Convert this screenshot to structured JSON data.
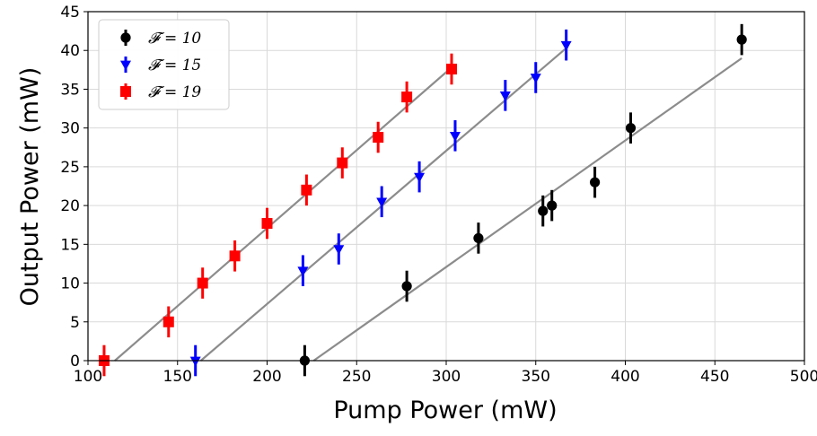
{
  "chart_data": {
    "type": "scatter",
    "title": "",
    "xlabel": "Pump Power (mW)",
    "ylabel": "Output Power (mW)",
    "xlim": [
      100,
      500
    ],
    "ylim": [
      0,
      45
    ],
    "xticks": [
      "100",
      "150",
      "200",
      "250",
      "300",
      "350",
      "400",
      "450",
      "500"
    ],
    "yticks": [
      "0",
      "5",
      "10",
      "15",
      "20",
      "25",
      "30",
      "35",
      "40",
      "45"
    ],
    "grid": true,
    "legend_position": "top-left",
    "series": [
      {
        "name": "𝓕 = 10",
        "color": "#000000",
        "marker": "circle",
        "points": [
          [
            221,
            0
          ],
          [
            278,
            9.6
          ],
          [
            318,
            15.8
          ],
          [
            354,
            19.3
          ],
          [
            359,
            20
          ],
          [
            383,
            23
          ],
          [
            403,
            30
          ],
          [
            465,
            41.4
          ]
        ],
        "error": 2.0,
        "fit": [
          [
            226,
            0
          ],
          [
            465,
            39
          ]
        ]
      },
      {
        "name": "𝓕 = 15",
        "color": "#0000ff",
        "marker": "triangle-down",
        "points": [
          [
            160,
            0
          ],
          [
            220,
            11.6
          ],
          [
            240,
            14.4
          ],
          [
            264,
            20.5
          ],
          [
            285,
            23.7
          ],
          [
            305,
            29
          ],
          [
            333,
            34.2
          ],
          [
            350,
            36.5
          ],
          [
            367,
            40.7
          ]
        ],
        "error": 2.0,
        "fit": [
          [
            163,
            0
          ],
          [
            368,
            40.5
          ]
        ]
      },
      {
        "name": "𝓕 = 19",
        "color": "#ff0000",
        "marker": "square",
        "points": [
          [
            109,
            0
          ],
          [
            145,
            5
          ],
          [
            164,
            10
          ],
          [
            182,
            13.5
          ],
          [
            200,
            17.7
          ],
          [
            222,
            22
          ],
          [
            242,
            25.5
          ],
          [
            262,
            28.8
          ],
          [
            278,
            34
          ],
          [
            303,
            37.6
          ]
        ],
        "error": 2.0,
        "fit": [
          [
            115,
            0
          ],
          [
            304,
            38
          ]
        ]
      }
    ]
  }
}
